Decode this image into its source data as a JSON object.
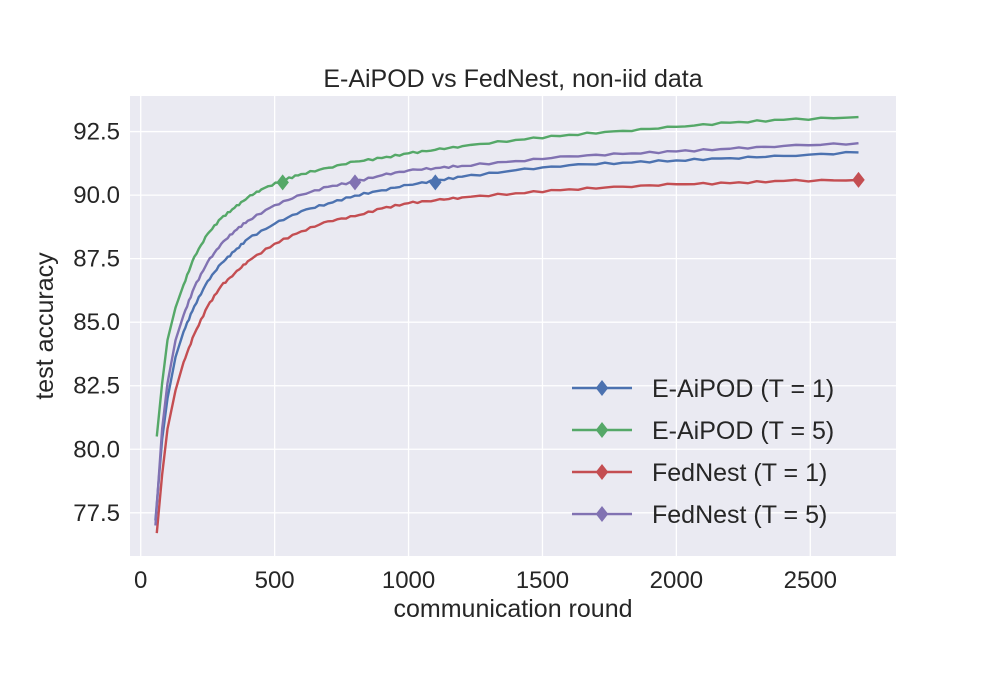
{
  "chart_data": {
    "type": "line",
    "title": "E-AiPOD vs FedNest, non-iid data",
    "xlabel": "communication round",
    "ylabel": "test accuracy",
    "xlim": [
      -40,
      2820
    ],
    "ylim": [
      75.8,
      93.9
    ],
    "xticks": [
      0,
      500,
      1000,
      1500,
      2000,
      2500
    ],
    "xtick_labels": [
      "0",
      "500",
      "1000",
      "1500",
      "2000",
      "2500"
    ],
    "yticks": [
      77.5,
      80.0,
      82.5,
      85.0,
      87.5,
      90.0,
      92.5
    ],
    "ytick_labels": [
      "77.5",
      "80.0",
      "82.5",
      "85.0",
      "87.5",
      "90.0",
      "92.5"
    ],
    "grid": true,
    "legend_position": "lower-right",
    "series": [
      {
        "name": "E-AiPOD",
        "legend_param": "(T = 1)",
        "color": "#4c72b0",
        "marker": "diamond",
        "marker_at": [
          1100,
          90.5
        ],
        "x": [
          55,
          80,
          100,
          130,
          160,
          200,
          250,
          300,
          350,
          400,
          500,
          600,
          700,
          800,
          900,
          1000,
          1100,
          1200,
          1400,
          1600,
          1800,
          2000,
          2200,
          2400,
          2680
        ],
        "y": [
          77.2,
          80.4,
          82.0,
          83.6,
          84.6,
          85.6,
          86.6,
          87.3,
          87.8,
          88.3,
          88.9,
          89.4,
          89.7,
          90.0,
          90.2,
          90.4,
          90.55,
          90.7,
          90.95,
          91.15,
          91.25,
          91.35,
          91.45,
          91.55,
          91.7
        ]
      },
      {
        "name": "E-AiPOD",
        "legend_param": "(T = 5)",
        "color": "#55a868",
        "marker": "diamond",
        "marker_at": [
          530,
          90.5
        ],
        "x": [
          60,
          80,
          100,
          130,
          160,
          200,
          250,
          300,
          350,
          400,
          450,
          530,
          600,
          700,
          800,
          900,
          1000,
          1100,
          1200,
          1400,
          1600,
          1800,
          2000,
          2200,
          2400,
          2680
        ],
        "y": [
          80.5,
          82.6,
          84.3,
          85.6,
          86.5,
          87.6,
          88.5,
          89.1,
          89.5,
          89.9,
          90.2,
          90.55,
          90.8,
          91.05,
          91.3,
          91.45,
          91.65,
          91.8,
          91.95,
          92.2,
          92.4,
          92.55,
          92.7,
          92.85,
          92.95,
          93.05
        ]
      },
      {
        "name": "FedNest",
        "legend_param": "(T = 1)",
        "color": "#c44e52",
        "marker": "diamond",
        "marker_at": [
          2680,
          90.6
        ],
        "x": [
          60,
          80,
          100,
          130,
          160,
          200,
          250,
          300,
          350,
          400,
          500,
          600,
          700,
          800,
          900,
          1000,
          1100,
          1200,
          1400,
          1600,
          1800,
          2000,
          2200,
          2400,
          2680
        ],
        "y": [
          76.7,
          79.0,
          80.8,
          82.3,
          83.4,
          84.5,
          85.6,
          86.4,
          86.9,
          87.4,
          88.1,
          88.6,
          89.0,
          89.2,
          89.5,
          89.7,
          89.8,
          89.9,
          90.05,
          90.2,
          90.3,
          90.4,
          90.45,
          90.55,
          90.6
        ]
      },
      {
        "name": "FedNest",
        "legend_param": "(T = 5)",
        "color": "#8172b2",
        "marker": "diamond",
        "marker_at": [
          800,
          90.5
        ],
        "x": [
          55,
          80,
          100,
          130,
          160,
          200,
          250,
          300,
          350,
          400,
          500,
          600,
          700,
          800,
          900,
          1000,
          1100,
          1200,
          1400,
          1600,
          1800,
          2000,
          2200,
          2400,
          2680
        ],
        "y": [
          77.0,
          80.8,
          82.6,
          84.3,
          85.3,
          86.4,
          87.4,
          88.1,
          88.6,
          89.0,
          89.6,
          90.0,
          90.3,
          90.5,
          90.75,
          90.95,
          91.05,
          91.15,
          91.35,
          91.55,
          91.65,
          91.75,
          91.85,
          91.95,
          92.05
        ]
      }
    ]
  }
}
